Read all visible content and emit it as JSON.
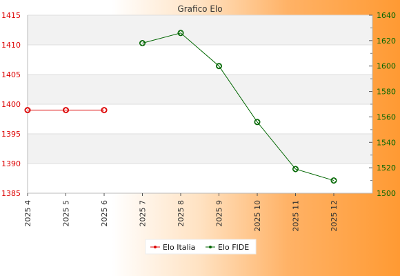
{
  "chart_data": {
    "type": "line",
    "title": "Grafico Elo",
    "categories": [
      "2025 4",
      "2025 5",
      "2025 6",
      "2025 7",
      "2025 8",
      "2025 9",
      "2025 10",
      "2025 11",
      "2025 12"
    ],
    "y_left": {
      "ylim": [
        1385,
        1415
      ],
      "ticks": [
        "1385",
        "1390",
        "1395",
        "1400",
        "1405",
        "1410",
        "1415"
      ],
      "color": "#dd0000"
    },
    "y_right": {
      "ylim": [
        1500,
        1640
      ],
      "ticks": [
        "1500",
        "1520",
        "1540",
        "1560",
        "1580",
        "1600",
        "1620",
        "1640"
      ],
      "color": "#006600"
    },
    "series": [
      {
        "name": "Elo Italia",
        "axis": "left",
        "color": "#dd0000",
        "values": [
          1399,
          1399,
          1399,
          null,
          null,
          null,
          null,
          null,
          null
        ]
      },
      {
        "name": "Elo FIDE",
        "axis": "right",
        "color": "#006600",
        "values": [
          null,
          null,
          null,
          1618,
          1626,
          1600,
          1556,
          1519,
          1510
        ]
      }
    ],
    "grid": true,
    "legend_position": "bottom-center"
  }
}
